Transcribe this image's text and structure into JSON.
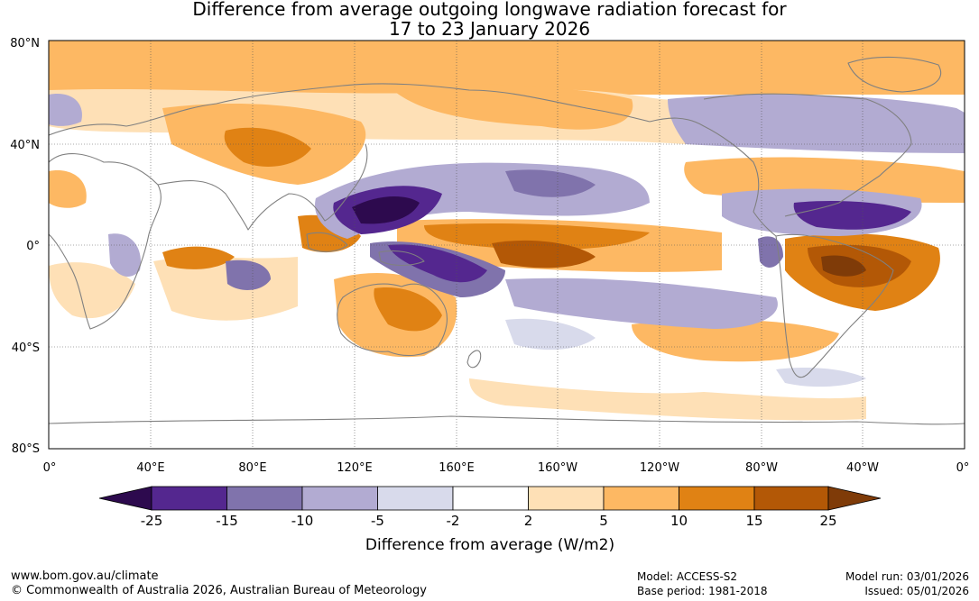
{
  "title": {
    "line1": "Difference from average outgoing longwave radiation forecast for",
    "line2": "17 to 23 January 2026"
  },
  "map": {
    "lat_labels": [
      "80°N",
      "40°N",
      "0°",
      "40°S",
      "80°S"
    ],
    "lon_labels": [
      "0°",
      "40°E",
      "80°E",
      "120°E",
      "160°E",
      "160°W",
      "120°W",
      "80°W",
      "40°W",
      "0°"
    ],
    "land_outline_color": "#808080"
  },
  "legend": {
    "breaks": [
      "-25",
      "-15",
      "-10",
      "-5",
      "-2",
      "2",
      "5",
      "10",
      "15",
      "25"
    ],
    "colors": [
      "#2d0a4e",
      "#54278f",
      "#8073ac",
      "#b2abd2",
      "#d8daeb",
      "#ffffff",
      "#fee0b6",
      "#fdb863",
      "#e08214",
      "#b35806",
      "#7f3b08"
    ],
    "label": "Difference from average (W/m2)"
  },
  "footer": {
    "website": "www.bom.gov.au/climate",
    "copyright": "© Commonwealth of Australia 2026, Australian Bureau of Meteorology",
    "model": "Model: ACCESS-S2",
    "base_period": "Base period: 1981-2018",
    "model_run": "Model run: 03/01/2026",
    "issued": "Issued: 05/01/2026"
  }
}
